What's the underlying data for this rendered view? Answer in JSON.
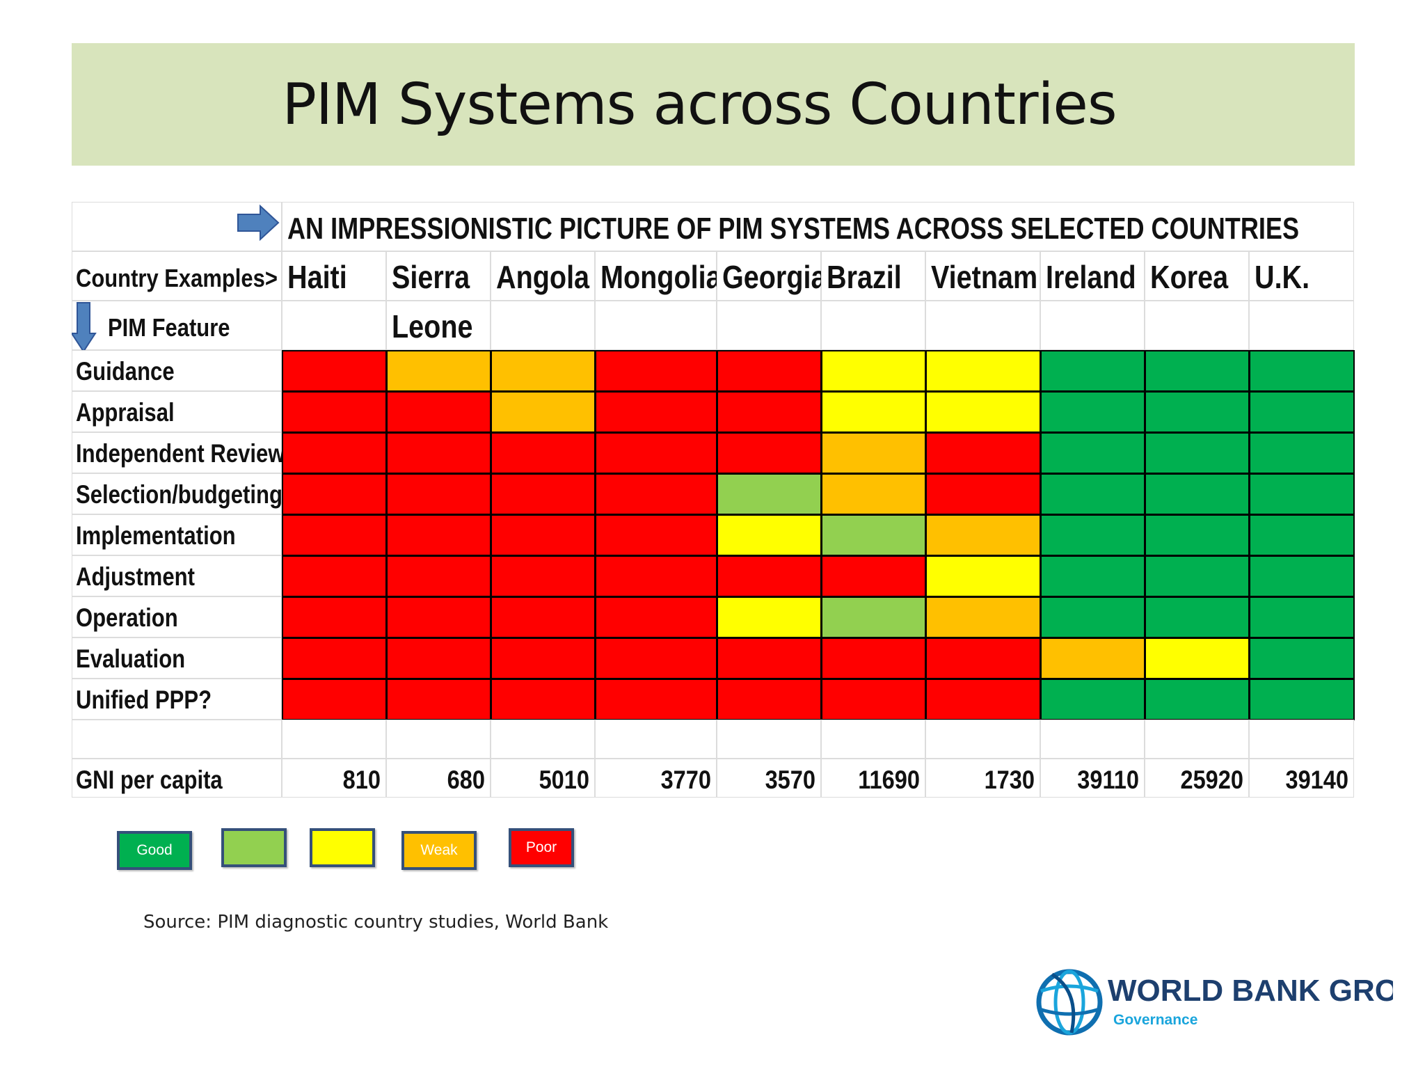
{
  "slide": {
    "title": "PIM Systems across Countries",
    "source": "Source: PIM diagnostic country studies, World  Bank"
  },
  "chart_data": {
    "type": "heatmap",
    "title": "AN IMPRESSIONISTIC PICTURE OF PIM SYSTEMS ACROSS SELECTED COUNTRIES",
    "row_header_label": "Country Examples>",
    "column_header_label": "PIM Feature",
    "countries": [
      "Haiti",
      "Sierra",
      "Angola",
      "Mongolia",
      "Georgia",
      "Brazil",
      "Vietnam",
      "Ireland",
      "Korea",
      "U.K."
    ],
    "countries_second_line": [
      "",
      "Leone",
      "",
      "",
      "",
      "",
      "",
      "",
      "",
      ""
    ],
    "features": [
      "Guidance",
      "Appraisal",
      "Independent Review",
      "Selection/budgeting",
      "Implementation",
      "Adjustment",
      "Operation",
      "Evaluation",
      "Unified PPP?"
    ],
    "rating_scale": [
      "Good",
      "Fairly good",
      "Moderate",
      "Weak",
      "Poor"
    ],
    "ratings": [
      [
        "Poor",
        "Weak",
        "Weak",
        "Poor",
        "Poor",
        "Moderate",
        "Moderate",
        "Good",
        "Good",
        "Good"
      ],
      [
        "Poor",
        "Poor",
        "Weak",
        "Poor",
        "Poor",
        "Moderate",
        "Moderate",
        "Good",
        "Good",
        "Good"
      ],
      [
        "Poor",
        "Poor",
        "Poor",
        "Poor",
        "Poor",
        "Weak",
        "Poor",
        "Good",
        "Good",
        "Good"
      ],
      [
        "Poor",
        "Poor",
        "Poor",
        "Poor",
        "Fairly good",
        "Weak",
        "Poor",
        "Good",
        "Good",
        "Good"
      ],
      [
        "Poor",
        "Poor",
        "Poor",
        "Poor",
        "Moderate",
        "Fairly good",
        "Weak",
        "Good",
        "Good",
        "Good"
      ],
      [
        "Poor",
        "Poor",
        "Poor",
        "Poor",
        "Poor",
        "Poor",
        "Moderate",
        "Good",
        "Good",
        "Good"
      ],
      [
        "Poor",
        "Poor",
        "Poor",
        "Poor",
        "Moderate",
        "Fairly good",
        "Weak",
        "Good",
        "Good",
        "Good"
      ],
      [
        "Poor",
        "Poor",
        "Poor",
        "Poor",
        "Poor",
        "Poor",
        "Poor",
        "Weak",
        "Moderate",
        "Good"
      ],
      [
        "Poor",
        "Poor",
        "Poor",
        "Poor",
        "Poor",
        "Poor",
        "Poor",
        "Good",
        "Good",
        "Good"
      ]
    ],
    "gni_label": "GNI per capita",
    "gni_per_capita": [
      810,
      680,
      5010,
      3770,
      3570,
      11690,
      1730,
      39110,
      25920,
      39140
    ],
    "legend": [
      {
        "rating": "Good",
        "label": "Good"
      },
      {
        "rating": "Fairly good",
        "label": ""
      },
      {
        "rating": "Moderate",
        "label": ""
      },
      {
        "rating": "Weak",
        "label": "Weak"
      },
      {
        "rating": "Poor",
        "label": "Poor"
      }
    ]
  },
  "colors": {
    "Good": "#00b050",
    "Fairly good": "#92d050",
    "Moderate": "#ffff00",
    "Weak": "#ffc000",
    "Poor": "#ff0000",
    "title_band": "#d8e4bc",
    "arrow": "#4f81bd"
  },
  "logo": {
    "name": "WORLD BANK GROUP",
    "subtitle": "Governance"
  }
}
